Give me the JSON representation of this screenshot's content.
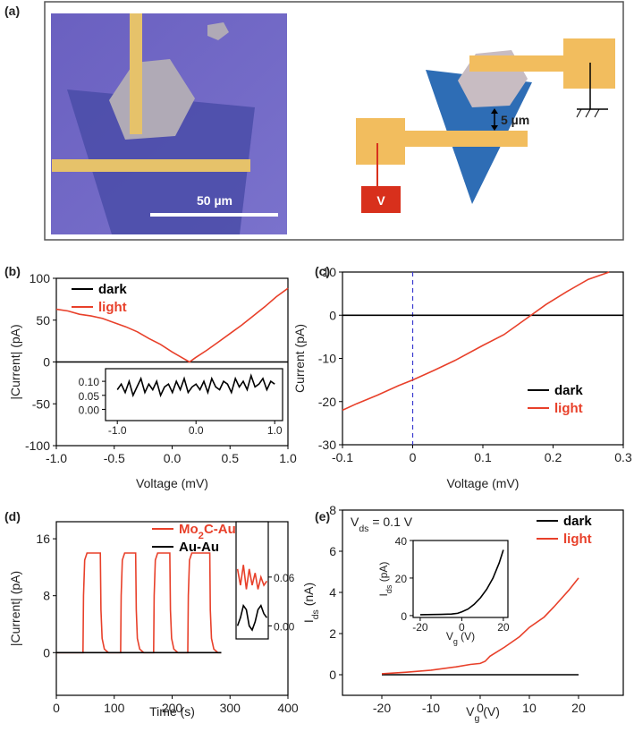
{
  "panel_a": {
    "label": "(a)",
    "scale_bar": "50 µm",
    "spacing": "5 µm",
    "source": "V"
  },
  "panel_labels": [
    "(b)",
    "(c)",
    "(d)",
    "(e)"
  ],
  "chart_data": [
    {
      "type": "line",
      "xlabel": "Voltage (mV)",
      "ylabel": "|Current| (pA)",
      "xlim": [
        -1,
        1
      ],
      "ylim": [
        -100,
        100
      ],
      "xticks": [
        {
          "value": -1,
          "label": "-1.0"
        },
        {
          "value": -0.5,
          "label": "-0.5"
        },
        {
          "value": 0,
          "label": "0.0"
        },
        0.5,
        {
          "value": 1,
          "label": "1.0"
        }
      ],
      "yticks": [
        -100,
        -50,
        0,
        50,
        100
      ],
      "series": [
        {
          "name": "dark",
          "color": "#000000",
          "x": [
            -1,
            1
          ],
          "values": [
            0,
            0
          ]
        },
        {
          "name": "light",
          "color": "#e8402a",
          "x": [
            -1,
            -0.9,
            -0.8,
            -0.7,
            -0.6,
            -0.5,
            -0.4,
            -0.3,
            -0.2,
            -0.1,
            0,
            0.1,
            0.15,
            0.2,
            0.3,
            0.4,
            0.5,
            0.6,
            0.7,
            0.8,
            0.9,
            1
          ],
          "values": [
            63,
            61,
            57,
            55,
            52,
            47,
            42,
            36,
            28,
            21,
            12,
            4,
            0,
            5,
            14,
            24,
            34,
            44,
            55,
            66,
            78,
            88
          ]
        }
      ]
    },
    {
      "type": "line",
      "xlim": [
        -1.15,
        1.1
      ],
      "ylim": [
        -0.04,
        0.145
      ],
      "xticks": [
        {
          "value": -1,
          "label": "-1.0"
        },
        {
          "value": 0,
          "label": "0.0"
        },
        {
          "value": 1,
          "label": "1.0"
        }
      ],
      "yticks": [
        {
          "value": 0,
          "label": "0.00"
        },
        0.05,
        {
          "value": 0.1,
          "label": "0.10"
        }
      ],
      "series": [
        {
          "color": "#000000",
          "x": [
            -1,
            -0.95,
            -0.9,
            -0.85,
            -0.8,
            -0.75,
            -0.7,
            -0.65,
            -0.6,
            -0.55,
            -0.5,
            -0.45,
            -0.4,
            -0.35,
            -0.3,
            -0.25,
            -0.2,
            -0.15,
            -0.1,
            -0.05,
            0,
            0.05,
            0.1,
            0.15,
            0.2,
            0.25,
            0.3,
            0.35,
            0.4,
            0.45,
            0.5,
            0.55,
            0.6,
            0.65,
            0.7,
            0.75,
            0.8,
            0.85,
            0.9,
            0.95,
            1
          ],
          "values": [
            0.07,
            0.09,
            0.06,
            0.1,
            0.05,
            0.08,
            0.11,
            0.06,
            0.09,
            0.07,
            0.1,
            0.05,
            0.08,
            0.09,
            0.06,
            0.1,
            0.07,
            0.11,
            0.06,
            0.08,
            0.09,
            0.07,
            0.1,
            0.06,
            0.11,
            0.08,
            0.07,
            0.1,
            0.09,
            0.06,
            0.11,
            0.08,
            0.1,
            0.07,
            0.12,
            0.08,
            0.09,
            0.11,
            0.07,
            0.1,
            0.09
          ]
        }
      ]
    },
    {
      "type": "line",
      "xlabel": "Voltage (mV)",
      "ylabel": "Current (pA)",
      "xlim": [
        -0.1,
        0.3
      ],
      "ylim": [
        -30,
        10
      ],
      "xticks": [
        -0.1,
        0,
        0.1,
        0.2,
        0.3
      ],
      "yticks": [
        -30,
        -20,
        -10,
        0,
        10
      ],
      "vline": {
        "x": 0,
        "color": "#3a3ad0"
      },
      "series": [
        {
          "name": "dark",
          "color": "#000000",
          "x": [
            -0.1,
            0.3
          ],
          "values": [
            0,
            0
          ]
        },
        {
          "name": "light",
          "color": "#e8402a",
          "x": [
            -0.1,
            -0.08,
            -0.05,
            -0.02,
            0,
            0.03,
            0.06,
            0.1,
            0.13,
            0.16,
            0.19,
            0.22,
            0.25,
            0.28
          ],
          "values": [
            -22,
            -20.5,
            -18.5,
            -16.3,
            -15,
            -12.8,
            -10.5,
            -7,
            -4.5,
            -1,
            2.5,
            5.5,
            8.3,
            10
          ]
        }
      ]
    },
    {
      "type": "line",
      "xlabel": "Time (s)",
      "ylabel": "|Current| (pA)",
      "xlim": [
        0,
        400
      ],
      "ylim": [
        -6,
        18.4
      ],
      "xticks": [
        0,
        100,
        200,
        300,
        400
      ],
      "yticks": [
        0,
        8,
        16
      ],
      "series": [
        {
          "name": [
            "Mo",
            "2",
            "C-Au"
          ],
          "color": "#e8402a",
          "x": [
            0,
            46,
            47,
            49,
            53,
            76,
            77,
            79,
            83,
            90,
            111,
            112,
            114,
            118,
            137,
            138,
            140,
            144,
            151,
            168,
            169,
            171,
            175,
            196,
            197,
            199,
            203,
            210,
            227,
            228,
            230,
            234,
            265,
            266,
            268,
            272,
            279,
            285
          ],
          "values": [
            0,
            0,
            8,
            13,
            14,
            14,
            6,
            2,
            0.5,
            0,
            0,
            8,
            13,
            14,
            14,
            6,
            2,
            0.5,
            0,
            0,
            8,
            13,
            14,
            14,
            6,
            2,
            0.5,
            0,
            0,
            8,
            13,
            14,
            14,
            6,
            2,
            0.5,
            0,
            0
          ]
        },
        {
          "name": [
            "Au-Au"
          ],
          "color": "#000000",
          "x": [
            0,
            285
          ],
          "values": [
            0,
            0
          ]
        }
      ]
    },
    {
      "type": "line",
      "ylim": [
        -0.016,
        0.128
      ],
      "yticks": [
        {
          "value": 0,
          "label": "0.00"
        },
        0.06
      ],
      "series": [
        {
          "color": "#e8402a",
          "values": [
            0.07,
            0.05,
            0.075,
            0.045,
            0.07,
            0.05,
            0.065,
            0.045,
            0.06,
            0.05,
            0.055
          ]
        },
        {
          "color": "#000000",
          "values": [
            0,
            0.01,
            0.025,
            0.02,
            0,
            -0.005,
            0.005,
            0.02,
            0.025,
            0.015,
            0.01
          ]
        }
      ]
    },
    {
      "type": "line",
      "xlabel": [
        "V",
        "g",
        " (V)"
      ],
      "ylabel": [
        "I",
        "ds",
        " (nA)"
      ],
      "annotation": [
        "V",
        "ds",
        " = 0.1 V"
      ],
      "xlim": [
        -28,
        29.1
      ],
      "ylim": [
        -1,
        8
      ],
      "xticks": [
        -20,
        -10,
        0,
        10,
        20
      ],
      "yticks": [
        0,
        2,
        4,
        6,
        8
      ],
      "series": [
        {
          "name": "dark",
          "color": "#000000",
          "x": [
            -20,
            20
          ],
          "values": [
            0,
            0
          ]
        },
        {
          "name": "light",
          "color": "#e8402a",
          "x": [
            -20,
            -15,
            -10,
            -5,
            -2,
            0,
            1,
            2,
            5,
            8,
            10,
            13,
            15,
            18,
            20
          ],
          "values": [
            0.05,
            0.12,
            0.22,
            0.38,
            0.5,
            0.55,
            0.65,
            0.9,
            1.35,
            1.85,
            2.3,
            2.8,
            3.3,
            4.1,
            4.7
          ]
        }
      ]
    },
    {
      "type": "line",
      "xlabel": [
        "V",
        "g",
        " (V)"
      ],
      "ylabel": [
        "I",
        "ds",
        " (pA)"
      ],
      "xlim": [
        -23.4,
        22.2
      ],
      "ylim": [
        -1,
        40
      ],
      "xticks": [
        -20,
        0,
        20
      ],
      "yticks": [
        0,
        20,
        40
      ],
      "series": [
        {
          "color": "#000000",
          "x": [
            -20,
            -10,
            -5,
            -2,
            0,
            3,
            6,
            9,
            12,
            15,
            18,
            20
          ],
          "values": [
            0.5,
            0.6,
            0.8,
            1.2,
            2,
            3.5,
            6,
            9.5,
            14,
            20,
            28,
            35
          ]
        }
      ]
    }
  ]
}
